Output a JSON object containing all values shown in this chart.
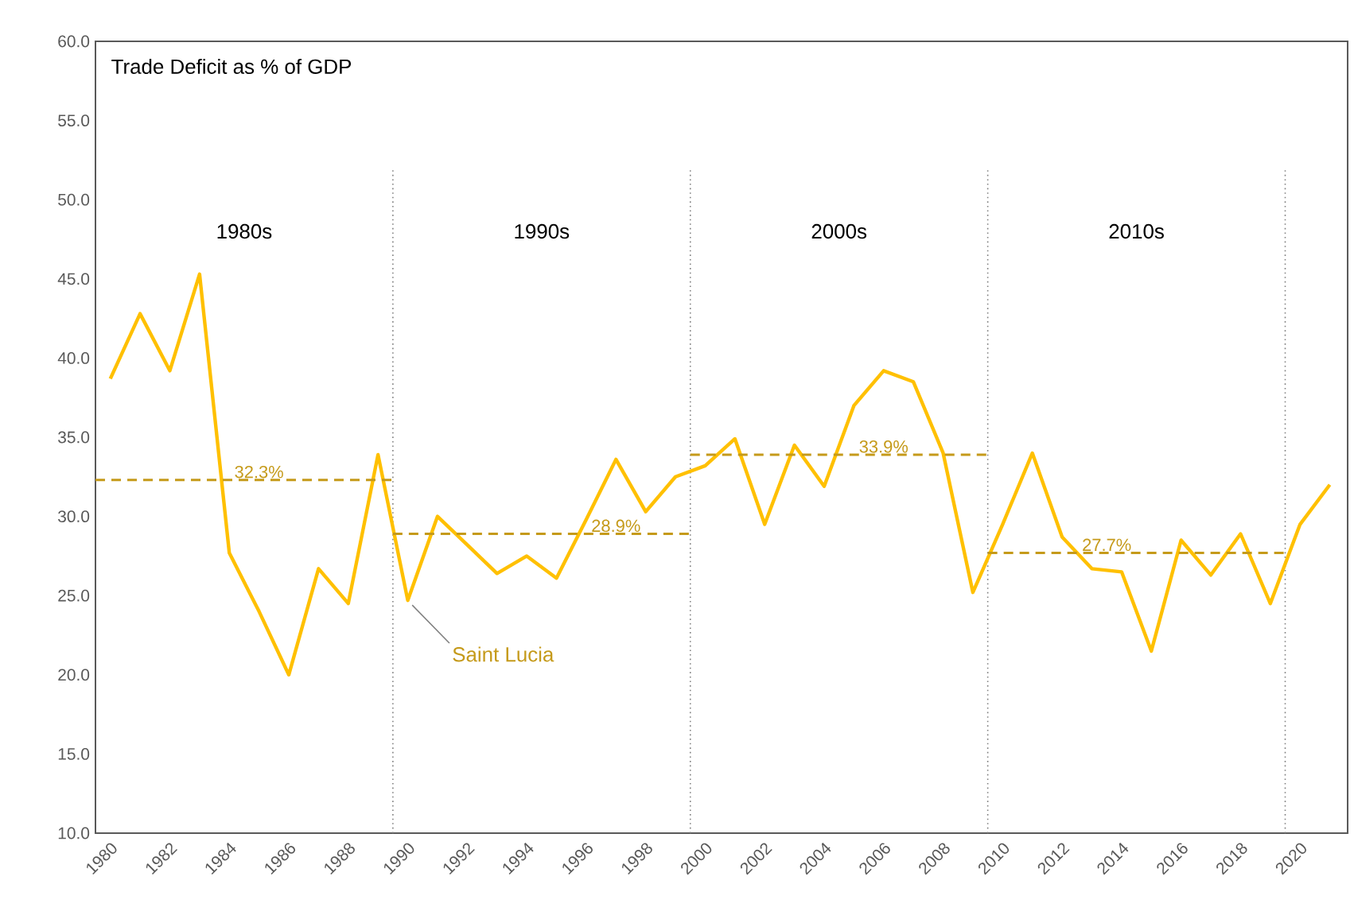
{
  "chart_data": {
    "type": "line",
    "title": "Trade Deficit as % of GDP",
    "x": [
      1980,
      1981,
      1982,
      1983,
      1984,
      1985,
      1986,
      1987,
      1988,
      1989,
      1990,
      1991,
      1992,
      1993,
      1994,
      1995,
      1996,
      1997,
      1998,
      1999,
      2000,
      2001,
      2002,
      2003,
      2004,
      2005,
      2006,
      2007,
      2008,
      2009,
      2010,
      2011,
      2012,
      2013,
      2014,
      2015,
      2016,
      2017,
      2018,
      2019,
      2020,
      2021
    ],
    "series": [
      {
        "name": "Saint Lucia",
        "color": "#ffc000",
        "values": [
          38.7,
          42.8,
          39.2,
          45.3,
          27.7,
          24.0,
          20.0,
          26.7,
          24.5,
          33.9,
          24.7,
          30.0,
          28.2,
          26.4,
          27.5,
          26.1,
          29.8,
          33.6,
          30.3,
          32.5,
          33.2,
          34.9,
          29.5,
          34.5,
          31.9,
          37.0,
          39.2,
          38.5,
          34.0,
          25.2,
          29.5,
          34.0,
          28.7,
          26.7,
          26.5,
          21.5,
          28.5,
          26.3,
          28.9,
          24.5,
          29.5,
          32.0
        ]
      },
      {
        "x": [
          1979.5,
          1989.5
        ],
        "color": "#c59a1a",
        "line_style": "dashed",
        "values": [
          32.3,
          32.3
        ]
      },
      {
        "x": [
          1989.5,
          1999.5
        ],
        "color": "#c59a1a",
        "line_style": "dashed",
        "values": [
          28.9,
          28.9
        ]
      },
      {
        "x": [
          1999.5,
          2009.5
        ],
        "color": "#c59a1a",
        "line_style": "dashed",
        "values": [
          33.9,
          33.9
        ]
      },
      {
        "x": [
          2009.5,
          2019.5
        ],
        "color": "#c59a1a",
        "line_style": "dashed",
        "values": [
          27.7,
          27.7
        ]
      }
    ],
    "xlim": [
      1979.5,
      2021.6
    ],
    "xticks": [
      1980,
      1982,
      1984,
      1986,
      1988,
      1990,
      1992,
      1994,
      1996,
      1998,
      2000,
      2002,
      2004,
      2006,
      2008,
      2010,
      2012,
      2014,
      2016,
      2018,
      2020
    ],
    "ylim": [
      10,
      60
    ],
    "yticks": [
      {
        "value": 10,
        "label": "10.0"
      },
      {
        "value": 15,
        "label": "15.0"
      },
      {
        "value": 20,
        "label": "20.0"
      },
      {
        "value": 25,
        "label": "25.0"
      },
      {
        "value": 30,
        "label": "30.0"
      },
      {
        "value": 35,
        "label": "35.0"
      },
      {
        "value": 40,
        "label": "40.0"
      },
      {
        "value": 45,
        "label": "45.0"
      },
      {
        "value": 50,
        "label": "50.0"
      },
      {
        "value": 55,
        "label": "55.0"
      },
      {
        "value": 60,
        "label": "60.0"
      }
    ],
    "ref_lines": [
      {
        "axis": "x",
        "value": 1989.5,
        "color": "#808080",
        "line_style": "dotted"
      },
      {
        "axis": "x",
        "value": 1999.5,
        "color": "#808080",
        "line_style": "dotted"
      },
      {
        "axis": "x",
        "value": 2009.5,
        "color": "#808080",
        "line_style": "dotted"
      },
      {
        "axis": "x",
        "value": 2019.5,
        "color": "#808080",
        "line_style": "dotted"
      }
    ],
    "annotations": [
      "1980s",
      "1990s",
      "2000s",
      "2010s",
      {
        "text": "32.3%",
        "x": 1985,
        "y": 32.3
      },
      {
        "text": "28.9%",
        "x": 1997,
        "y": 28.9
      },
      {
        "text": "33.9%",
        "x": 2006,
        "y": 33.9
      },
      {
        "text": "27.7%",
        "x": 2013.5,
        "y": 27.7
      }
    ],
    "grid": false,
    "legend": false,
    "marker": "none",
    "line_style": "solid"
  }
}
